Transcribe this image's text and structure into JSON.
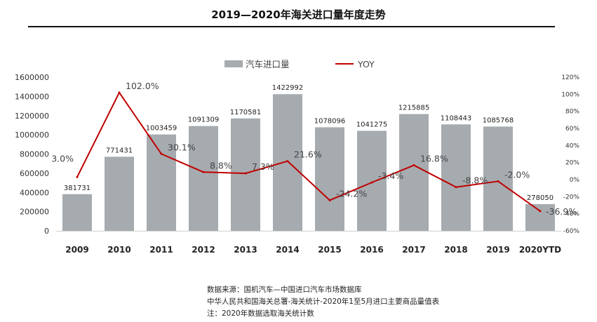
{
  "chart_data": {
    "type": "bar",
    "title": "2019—2020年海关进口量年度走势",
    "categories": [
      "2009",
      "2010",
      "2011",
      "2012",
      "2013",
      "2014",
      "2015",
      "2016",
      "2017",
      "2018",
      "2019",
      "2020YTD"
    ],
    "series": [
      {
        "name": "汽车进口量",
        "type": "bar",
        "axis": "left",
        "color": "#a6abaf",
        "values": [
          381731,
          771431,
          1003459,
          1091309,
          1170581,
          1422992,
          1078096,
          1041275,
          1215885,
          1108443,
          1085768,
          278050
        ],
        "labels": [
          "381731",
          "771431",
          "1003459",
          "1091309",
          "1170581",
          "1422992",
          "1078096",
          "1041275",
          "1215885",
          "1108443",
          "1085768",
          "278050"
        ]
      },
      {
        "name": "YOY",
        "type": "line",
        "axis": "right",
        "color": "#c00000",
        "values": [
          3.0,
          102.0,
          30.1,
          8.8,
          7.3,
          21.6,
          -24.2,
          -3.4,
          16.8,
          -8.8,
          -2.0,
          -36.9
        ],
        "labels": [
          "3.0%",
          "102.0%",
          "30.1%",
          "8.8%",
          "7.3%",
          "21.6%",
          "-24.2%",
          "-3.4%",
          "16.8%",
          "-8.8%",
          "-2.0%",
          "-36.9%"
        ]
      }
    ],
    "left_axis": {
      "ylim": [
        0,
        1600000
      ],
      "ticks": [
        0,
        200000,
        400000,
        600000,
        800000,
        1000000,
        1200000,
        1400000,
        1600000
      ],
      "tick_labels": [
        "0",
        "200000",
        "400000",
        "600000",
        "800000",
        "1000000",
        "1200000",
        "1400000",
        "1600000"
      ]
    },
    "right_axis": {
      "ylim": [
        -60,
        120
      ],
      "ticks": [
        -60,
        -40,
        -20,
        0,
        20,
        40,
        60,
        80,
        100,
        120
      ],
      "tick_labels": [
        "-60%",
        "-40%",
        "-20%",
        "0%",
        "20%",
        "40%",
        "60%",
        "80%",
        "100%",
        "120%"
      ]
    },
    "legend_position": "top-center",
    "grid": false
  },
  "footnotes": [
    "数据来源：国机汽车—中国进口汽车市场数据库",
    "中华人民共和国海关总署-海关统计-2020年1至5月进口主要商品量值表",
    "注：2020年数据选取海关统计数"
  ]
}
